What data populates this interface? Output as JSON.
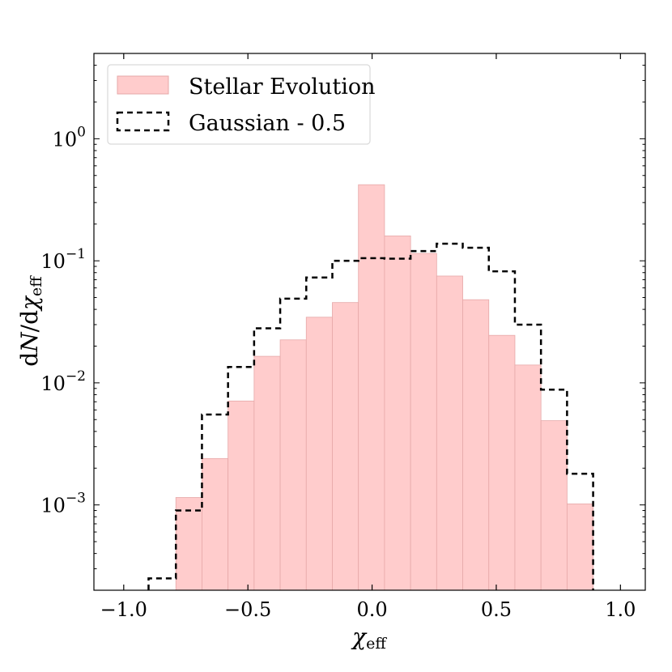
{
  "chart_data": {
    "type": "histogram",
    "xlabel": "χeff",
    "ylabel": "dN/dχeff",
    "xlim": [
      -1.12,
      1.1
    ],
    "ylim": [
      0.0002,
      5.0
    ],
    "yscale": "log",
    "grid": false,
    "legend_position": "top-left",
    "xticks": [
      {
        "value": -1.0,
        "label": "−1.0"
      },
      {
        "value": -0.5,
        "label": "−0.5"
      },
      {
        "value": 0.0,
        "label": "0.0"
      },
      {
        "value": 0.5,
        "label": "0.5"
      },
      {
        "value": 1.0,
        "label": "1.0"
      }
    ],
    "yticks": [
      {
        "value": 0.001,
        "base": "10",
        "exp": "−3"
      },
      {
        "value": 0.01,
        "base": "10",
        "exp": "−2"
      },
      {
        "value": 0.1,
        "base": "10",
        "exp": "−1"
      },
      {
        "value": 1,
        "base": "10",
        "exp": "0"
      }
    ],
    "bin_edges": [
      -1.005,
      -0.9,
      -0.79,
      -0.685,
      -0.58,
      -0.475,
      -0.37,
      -0.265,
      -0.16,
      -0.055,
      0.05,
      0.155,
      0.26,
      0.365,
      0.47,
      0.575,
      0.68,
      0.785,
      0.89
    ],
    "series": [
      {
        "name": "Stellar Evolution",
        "style": "filled",
        "color": "#ffcccc",
        "edge_color": "#e6a8a8",
        "values": [
          null,
          null,
          0.00115,
          0.0024,
          0.0071,
          0.0165,
          0.0225,
          0.0345,
          0.0455,
          0.42,
          0.16,
          0.115,
          0.075,
          0.048,
          0.0245,
          0.014,
          0.0049,
          0.00102
        ]
      },
      {
        "name": "Gaussian - 0.5",
        "style": "step-dashed",
        "color": "#000000",
        "values": [
          null,
          0.00025,
          0.0009,
          0.0055,
          0.0135,
          0.028,
          0.049,
          0.073,
          0.1,
          0.105,
          0.104,
          0.12,
          0.138,
          0.128,
          0.082,
          0.03,
          0.0088,
          0.0018
        ]
      }
    ]
  }
}
